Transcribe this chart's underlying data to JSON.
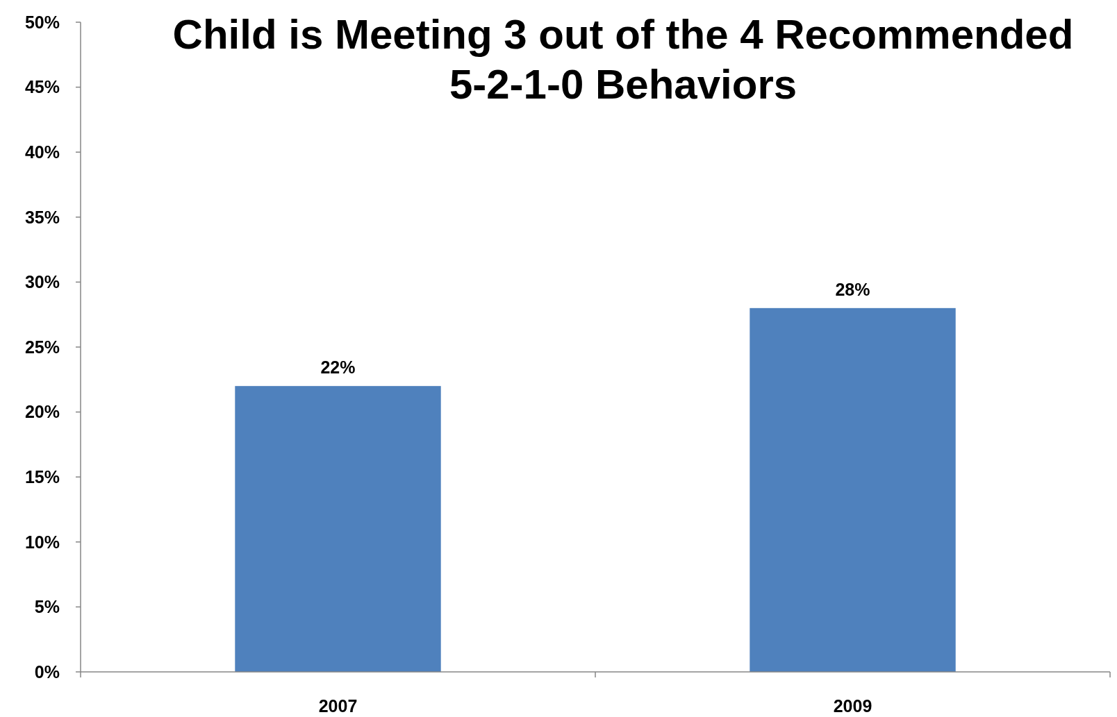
{
  "chart_data": {
    "type": "bar",
    "title": "Child is Meeting 3 out of the 4 Recommended 5-2-1-0 Behaviors",
    "categories": [
      "2007",
      "2009"
    ],
    "values": [
      22,
      28
    ],
    "value_labels": [
      "22%",
      "28%"
    ],
    "color": "#4f81bd",
    "ylim": [
      0,
      50
    ],
    "yticks": [
      {
        "value": 0,
        "label": "0%"
      },
      {
        "value": 5,
        "label": "5%"
      },
      {
        "value": 10,
        "label": "10%"
      },
      {
        "value": 15,
        "label": "15%"
      },
      {
        "value": 20,
        "label": "20%"
      },
      {
        "value": 25,
        "label": "25%"
      },
      {
        "value": 30,
        "label": "30%"
      },
      {
        "value": 35,
        "label": "35%"
      },
      {
        "value": 40,
        "label": "40%"
      },
      {
        "value": 45,
        "label": "45%"
      },
      {
        "value": 50,
        "label": "50%"
      }
    ],
    "grid": false
  }
}
